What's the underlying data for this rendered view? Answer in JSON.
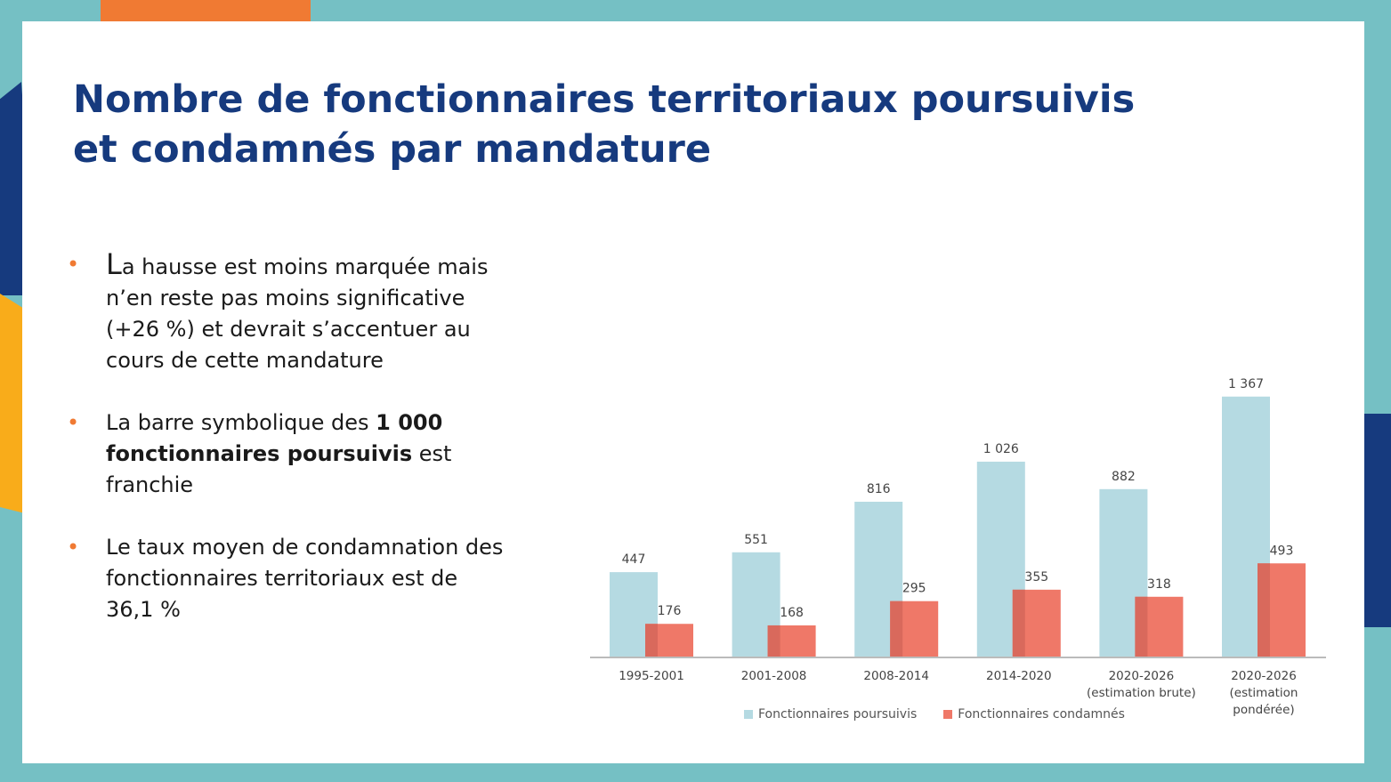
{
  "title": {
    "line1": "Nombre de fonctionnaires territoriaux poursuivis",
    "line2": "et condamnés par mandature"
  },
  "bullets": {
    "b1": {
      "first_letter": "L",
      "rest": "a hausse est moins marquée mais n’en reste pas moins significative (+26 %) et devrait s’accentuer au cours de cette mandature"
    },
    "b2": {
      "before": "La barre symbolique des ",
      "bold": "1 000 fonctionnaires poursuivis",
      "after": " est franchie"
    },
    "b3": {
      "text": "Le taux moyen de condamnation des fonctionnaires territoriaux est de 36,1 %"
    }
  },
  "colors": {
    "title": "#163a7e",
    "bullet_dot": "#f07a33",
    "poursuivis": "#b5dae2",
    "condamnes": "#ef7868",
    "overlap": "#d9695c",
    "axis": "#bbbbbb"
  },
  "chart_data": {
    "type": "bar",
    "categories": [
      [
        "1995-2001"
      ],
      [
        "2001-2008"
      ],
      [
        "2008-2014"
      ],
      [
        "2014-2020"
      ],
      [
        "2020-2026",
        "(estimation brute)"
      ],
      [
        "2020-2026",
        "(estimation",
        "pondérée)"
      ]
    ],
    "series": [
      {
        "name": "Fonctionnaires poursuivis",
        "values": [
          447,
          551,
          816,
          1026,
          882,
          1367
        ],
        "labels": [
          "447",
          "551",
          "816",
          "1 026",
          "882",
          "1 367"
        ]
      },
      {
        "name": "Fonctionnaires condamnés",
        "values": [
          176,
          168,
          295,
          355,
          318,
          493
        ],
        "labels": [
          "176",
          "168",
          "295",
          "355",
          "318",
          "493"
        ]
      }
    ],
    "grid": false,
    "legend": "bottom"
  }
}
